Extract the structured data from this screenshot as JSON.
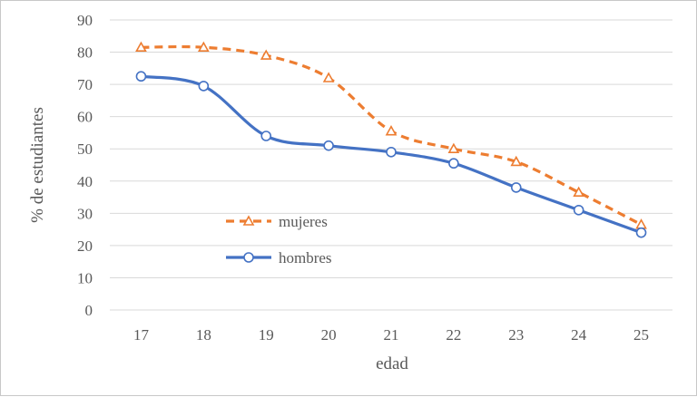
{
  "chart_data": {
    "type": "line",
    "title": "",
    "xlabel": "edad",
    "ylabel": "% de estudiantes",
    "x": [
      17,
      18,
      19,
      20,
      21,
      22,
      23,
      24,
      25
    ],
    "ylim": [
      0,
      90
    ],
    "yticks": [
      0,
      10,
      20,
      30,
      40,
      50,
      60,
      70,
      80,
      90
    ],
    "grid": "horizontal",
    "legend_position": "inside-left",
    "series": [
      {
        "name": "mujeres",
        "values": [
          81.5,
          81.5,
          79,
          72,
          55.5,
          50,
          46,
          36.5,
          26.5
        ],
        "color": "#ED7D31",
        "line_style": "dashed",
        "marker": "triangle-open"
      },
      {
        "name": "hombres",
        "values": [
          72.5,
          69.5,
          54,
          51,
          49,
          45.5,
          38,
          31,
          24
        ],
        "color": "#4472C4",
        "line_style": "solid",
        "marker": "circle-open"
      }
    ]
  }
}
